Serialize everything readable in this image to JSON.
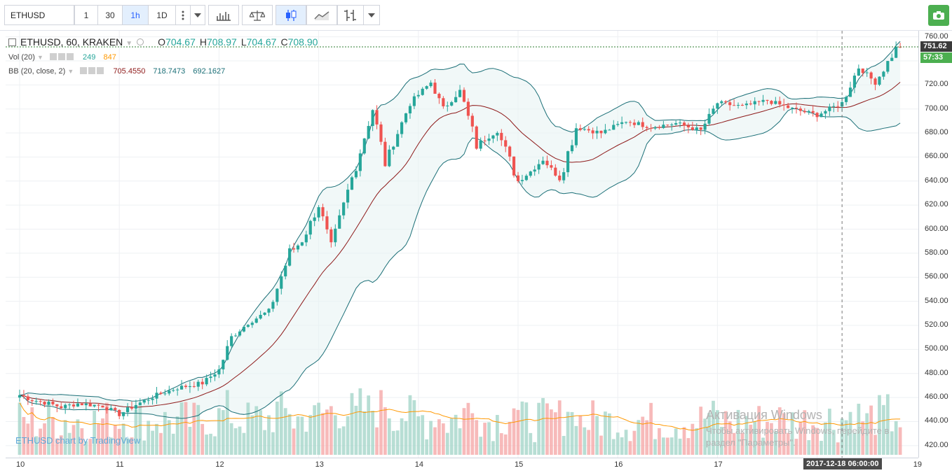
{
  "toolbar": {
    "symbol": "ETHUSD",
    "intervals": [
      "1",
      "30",
      "1h",
      "1D"
    ],
    "active_interval": "1h",
    "icons": [
      "more-icon",
      "dropdown-icon",
      "bar-style-icon",
      "compare-icon",
      "candle-style-icon",
      "line-style-icon",
      "indicators-icon",
      "dropdown-icon",
      "camera-icon"
    ]
  },
  "legend": {
    "symbol": "ETHUSD, 60, KRAKEN",
    "o_label": "O",
    "o": "704.67",
    "h_label": "H",
    "h": "708.97",
    "l_label": "L",
    "l": "704.67",
    "c_label": "C",
    "c": "708.90"
  },
  "indicators": {
    "vol": {
      "label": "Vol (20)",
      "v1": "249",
      "v2": "847"
    },
    "bb": {
      "label": "BB (20, close, 2)",
      "v1": "705.4550",
      "v2": "718.7473",
      "v3": "692.1627"
    }
  },
  "watermark": "ETHUSD chart by TradingView",
  "activation": {
    "title": "Активация Windows",
    "line1": "Чтобы активировать Windows, перейдите в",
    "line2": "раздел \"Параметры\"."
  },
  "price_axis": {
    "ticks": [
      "760.00",
      "740.00",
      "720.00",
      "700.00",
      "680.00",
      "660.00",
      "640.00",
      "620.00",
      "600.00",
      "580.00",
      "560.00",
      "540.00",
      "520.00",
      "500.00",
      "480.00",
      "460.00",
      "440.00",
      "420.00"
    ],
    "last_price": "751.62",
    "countdown": "57:33"
  },
  "time_axis": {
    "ticks": [
      "10",
      "11",
      "12",
      "13",
      "14",
      "15",
      "16",
      "17",
      "19"
    ],
    "crosshair_label": "2017-12-18 06:00:00"
  },
  "colors": {
    "up": "#26a69a",
    "down": "#ef5350",
    "bb_basis": "#8e1a1a",
    "bb_band": "#1b6f77",
    "bb_fill": "#e8f4f4",
    "vol_ma": "#ff9800",
    "last_price": "#2e7d32"
  },
  "chart_data": {
    "type": "candlestick",
    "timeframe": "60",
    "ylim": [
      410,
      765
    ],
    "y_ticks": [
      420,
      440,
      460,
      480,
      500,
      520,
      540,
      560,
      580,
      600,
      620,
      640,
      660,
      680,
      700,
      720,
      740,
      760
    ],
    "x_start": "2017-12-10 00:00",
    "x_end": "2017-12-18 20:00",
    "anchors_close": [
      [
        "2017-12-10 00:00",
        462
      ],
      [
        "2017-12-10 03:00",
        458
      ],
      [
        "2017-12-10 07:00",
        455
      ],
      [
        "2017-12-10 10:00",
        452
      ],
      [
        "2017-12-10 14:00",
        455
      ],
      [
        "2017-12-10 20:00",
        453
      ],
      [
        "2017-12-11 00:00",
        446
      ],
      [
        "2017-12-11 04:00",
        454
      ],
      [
        "2017-12-11 09:00",
        462
      ],
      [
        "2017-12-11 14:00",
        468
      ],
      [
        "2017-12-11 20:00",
        472
      ],
      [
        "2017-12-12 00:00",
        483
      ],
      [
        "2017-12-12 03:00",
        510
      ],
      [
        "2017-12-12 07:00",
        522
      ],
      [
        "2017-12-12 12:00",
        532
      ],
      [
        "2017-12-12 17:00",
        580
      ],
      [
        "2017-12-12 20:00",
        590
      ],
      [
        "2017-12-13 00:00",
        620
      ],
      [
        "2017-12-13 03:00",
        585
      ],
      [
        "2017-12-13 06:00",
        620
      ],
      [
        "2017-12-13 10:00",
        665
      ],
      [
        "2017-12-13 13:00",
        700
      ],
      [
        "2017-12-13 16:00",
        655
      ],
      [
        "2017-12-13 19:00",
        680
      ],
      [
        "2017-12-13 22:00",
        705
      ],
      [
        "2017-12-14 03:00",
        722
      ],
      [
        "2017-12-14 06:00",
        700
      ],
      [
        "2017-12-14 10:00",
        715
      ],
      [
        "2017-12-14 14:00",
        670
      ],
      [
        "2017-12-14 19:00",
        682
      ],
      [
        "2017-12-15 00:00",
        640
      ],
      [
        "2017-12-15 03:00",
        648
      ],
      [
        "2017-12-15 06:00",
        658
      ],
      [
        "2017-12-15 10:00",
        642
      ],
      [
        "2017-12-15 14:00",
        685
      ],
      [
        "2017-12-15 20:00",
        680
      ],
      [
        "2017-12-16 02:00",
        690
      ],
      [
        "2017-12-16 08:00",
        685
      ],
      [
        "2017-12-16 14:00",
        688
      ],
      [
        "2017-12-16 20:00",
        682
      ],
      [
        "2017-12-17 00:00",
        705
      ],
      [
        "2017-12-17 06:00",
        702
      ],
      [
        "2017-12-17 12:00",
        707
      ],
      [
        "2017-12-17 18:00",
        700
      ],
      [
        "2017-12-18 00:00",
        695
      ],
      [
        "2017-12-18 06:00",
        705
      ],
      [
        "2017-12-18 10:00",
        735
      ],
      [
        "2017-12-18 14:00",
        722
      ],
      [
        "2017-12-18 19:00",
        750
      ]
    ],
    "bollinger": {
      "period": 20,
      "source": "close",
      "mult": 2,
      "basis": 705.455,
      "upper": 718.7473,
      "lower": 692.1627
    },
    "volume_ma_period": 20,
    "crosshair_time": "2017-12-18 06:00:00",
    "last_price": 751.62,
    "grid": true
  }
}
